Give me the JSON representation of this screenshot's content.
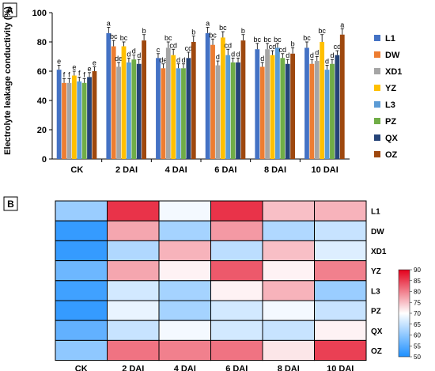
{
  "panel_labels": [
    "A",
    "B"
  ],
  "chart_data": [
    {
      "type": "bar",
      "ylabel": "Electrolyte leakage conductivity (%)",
      "xlabel": "",
      "ylim": [
        0,
        100
      ],
      "yticks": [
        0,
        20,
        40,
        60,
        80,
        100
      ],
      "categories": [
        "CK",
        "2 DAI",
        "4 DAI",
        "6 DAI",
        "8 DAI",
        "10 DAI"
      ],
      "legend_position": "right",
      "series": [
        {
          "name": "L1",
          "color": "#4472C4",
          "values": [
            61,
            86,
            69,
            86,
            75,
            76
          ],
          "errors": [
            3,
            4,
            3,
            4,
            4,
            4
          ],
          "letters": [
            "e",
            "a",
            "c",
            "a",
            "bc",
            "bc"
          ]
        },
        {
          "name": "DW",
          "color": "#ED7D31",
          "values": [
            52,
            77,
            62,
            78,
            63,
            65
          ],
          "errors": [
            3,
            4,
            3,
            4,
            3,
            3
          ],
          "letters": [
            "f",
            "bc",
            "de",
            "bc",
            "d",
            "d"
          ]
        },
        {
          "name": "XD1",
          "color": "#A5A5A5",
          "values": [
            52,
            63,
            76,
            64,
            75,
            67
          ],
          "errors": [
            3,
            3,
            4,
            3,
            4,
            3
          ],
          "letters": [
            "f",
            "de",
            "bc",
            "d",
            "bc",
            "d"
          ]
        },
        {
          "name": "YZ",
          "color": "#FFC000",
          "values": [
            57,
            77,
            71,
            83,
            71,
            80
          ],
          "errors": [
            3,
            3,
            4,
            4,
            3,
            5
          ],
          "letters": [
            "e",
            "bc",
            "cd",
            "bc",
            "cd",
            "bc"
          ]
        },
        {
          "name": "L3",
          "color": "#5B9BD5",
          "values": [
            53,
            66,
            62,
            71,
            76,
            61
          ],
          "errors": [
            3,
            3,
            3,
            4,
            3,
            3
          ],
          "letters": [
            "f",
            "d",
            "d",
            "cd",
            "bc",
            "d"
          ]
        },
        {
          "name": "PZ",
          "color": "#70AD47",
          "values": [
            52,
            68,
            62,
            66,
            69,
            65
          ],
          "errors": [
            3,
            3,
            3,
            3,
            3,
            3
          ],
          "letters": [
            "f",
            "d",
            "d",
            "d",
            "cd",
            "d"
          ]
        },
        {
          "name": "QX",
          "color": "#264478",
          "values": [
            56,
            65,
            69,
            66,
            65,
            71
          ],
          "errors": [
            3,
            3,
            4,
            3,
            3,
            3
          ],
          "letters": [
            "e",
            "d",
            "cd",
            "d",
            "d",
            "cd"
          ]
        },
        {
          "name": "OZ",
          "color": "#9E480E",
          "values": [
            60,
            81,
            80,
            81,
            72,
            85
          ],
          "errors": [
            3,
            4,
            4,
            4,
            4,
            4
          ],
          "letters": [
            "e",
            "b",
            "b",
            "b",
            "b",
            "a"
          ]
        }
      ]
    },
    {
      "type": "heatmap",
      "columns": [
        "CK",
        "2 DAI",
        "4 DAI",
        "6 DAI",
        "8 DAI",
        "10 DAI"
      ],
      "rows": [
        "L1",
        "DW",
        "XD1",
        "YZ",
        "L3",
        "PZ",
        "QX",
        "OZ"
      ],
      "values": [
        [
          61,
          86,
          69,
          86,
          75,
          76
        ],
        [
          52,
          77,
          62,
          78,
          63,
          65
        ],
        [
          52,
          63,
          76,
          64,
          75,
          67
        ],
        [
          57,
          77,
          71,
          83,
          71,
          80
        ],
        [
          53,
          66,
          62,
          71,
          76,
          61
        ],
        [
          52,
          68,
          62,
          66,
          69,
          65
        ],
        [
          56,
          65,
          69,
          66,
          65,
          71
        ],
        [
          60,
          81,
          80,
          81,
          72,
          85
        ]
      ],
      "colorbar": {
        "min": 50,
        "max": 90,
        "ticks": [
          50,
          55,
          60,
          65,
          70,
          75,
          80,
          85,
          90
        ],
        "low_color": "#1E90FF",
        "mid_color": "#FFFFFF",
        "high_color": "#E3001B"
      }
    }
  ]
}
